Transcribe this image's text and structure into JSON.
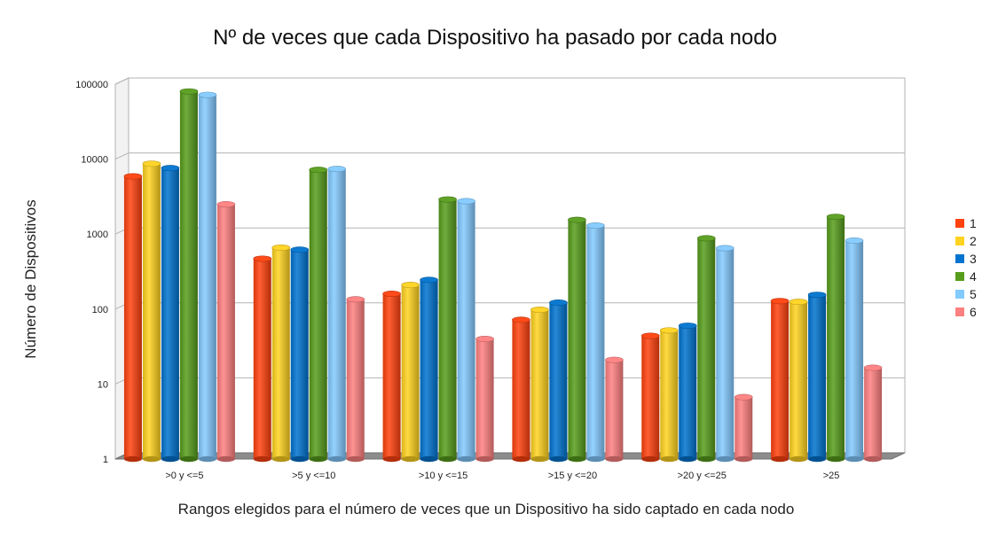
{
  "chart_data": {
    "type": "bar",
    "title": "Nº de veces que cada Dispositivo ha pasado por cada nodo",
    "xlabel": "Rangos elegidos para el número de veces que un Dispositivo ha sido captado en cada nodo",
    "ylabel": "Número de Dispositivos",
    "yscale": "log",
    "ylim": [
      1,
      100000
    ],
    "yticks": [
      "1",
      "10",
      "100",
      "1000",
      "10000",
      "100000"
    ],
    "grid": true,
    "legend_position": "right",
    "categories": [
      ">0  y <=5",
      ">5 y <=10",
      ">10 y <=15",
      ">15 y <=20",
      ">20 y <=25",
      ">25"
    ],
    "series": [
      {
        "name": "1",
        "color": "#ff420e",
        "values": [
          5900,
          470,
          160,
          72,
          44,
          128
        ]
      },
      {
        "name": "2",
        "color": "#ffd320",
        "values": [
          8700,
          660,
          210,
          98,
          52,
          125
        ]
      },
      {
        "name": "3",
        "color": "#0073cf",
        "values": [
          7600,
          620,
          245,
          122,
          60,
          155
        ]
      },
      {
        "name": "4",
        "color": "#579d1c",
        "values": [
          80000,
          7200,
          2900,
          1550,
          880,
          1700
        ]
      },
      {
        "name": "5",
        "color": "#83caff",
        "values": [
          72000,
          7400,
          2750,
          1300,
          650,
          820
        ]
      },
      {
        "name": "6",
        "color": "#ff8080",
        "values": [
          2500,
          135,
          40,
          21,
          6.7,
          16.5
        ]
      }
    ]
  }
}
